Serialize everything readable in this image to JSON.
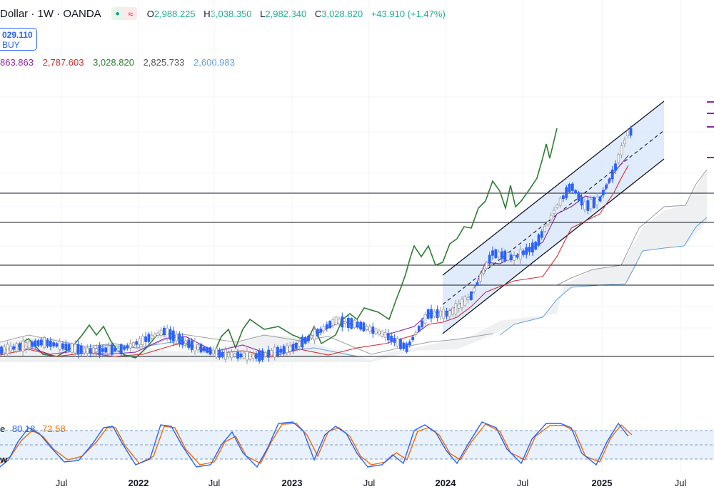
{
  "header": {
    "symbol_title": "Dollar · 1W · OANDA",
    "status_green_icon": "dot-icon",
    "status_red_icon": "approx-icon",
    "ohlc": {
      "o_label": "O",
      "o_value": "2,988.225",
      "h_label": "H",
      "h_value": "3,038.350",
      "l_label": "L",
      "l_value": "2,982.340",
      "c_label": "C",
      "c_value": "3,028.820",
      "change": "+43.910 (+1.47%)"
    }
  },
  "order": {
    "price": "029.110",
    "label": "BUY"
  },
  "ichimoku_values": {
    "v1": "863.863",
    "v2": "2,787.603",
    "v3": "3,028.820",
    "v4": "2,825.733",
    "v5": "2,600.983",
    "colors": [
      "#8e24aa",
      "#d32f2f",
      "#2e7d32",
      "#555555",
      "#64a0e0"
    ]
  },
  "stochastic": {
    "label_fragment": "e",
    "k": "80.18",
    "d": "72.58",
    "w_fragment": "w"
  },
  "xaxis": {
    "ticks": [
      {
        "label": "Jul",
        "year": false
      },
      {
        "label": "2022",
        "year": true
      },
      {
        "label": "Jul",
        "year": false
      },
      {
        "label": "2023",
        "year": true
      },
      {
        "label": "Jul",
        "year": false
      },
      {
        "label": "2024",
        "year": true
      },
      {
        "label": "Jul",
        "year": false
      },
      {
        "label": "2025",
        "year": true
      },
      {
        "label": "Jul",
        "year": false
      }
    ]
  },
  "colors": {
    "up": "#2962ff",
    "down": "#9e9e9e",
    "lagging": "#2e7d32",
    "tenkan": "#8e24aa",
    "kijun": "#d32f2f",
    "channel_fill": "#dbe8fb",
    "stoch_k": "#2962ff",
    "stoch_d": "#ef6c00"
  }
}
